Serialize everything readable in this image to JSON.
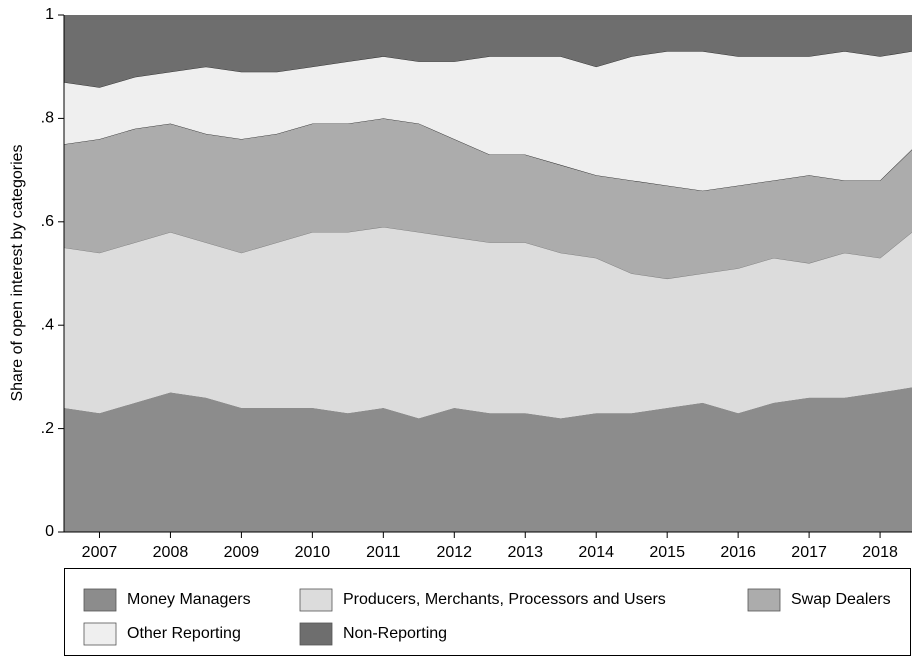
{
  "chart_data": {
    "type": "stacked_area",
    "y_label": "Share of open interest by categories",
    "x": [
      2006.5,
      2007,
      2007.5,
      2008,
      2008.5,
      2009,
      2009.5,
      2010,
      2010.5,
      2011,
      2011.5,
      2012,
      2012.5,
      2013,
      2013.5,
      2014,
      2014.5,
      2015,
      2015.5,
      2016,
      2016.5,
      2017,
      2017.5,
      2018,
      2018.45
    ],
    "xlim": [
      2006.5,
      2018.45
    ],
    "xticks": [
      2007,
      2008,
      2009,
      2010,
      2011,
      2012,
      2013,
      2014,
      2015,
      2016,
      2017,
      2018
    ],
    "ylim": [
      0,
      1
    ],
    "yticks": [
      0,
      {
        "value": 0.2,
        "label": ".2"
      },
      {
        "value": 0.4,
        "label": ".4"
      },
      {
        "value": 0.6,
        "label": ".6"
      },
      {
        "value": 0.8,
        "label": ".8"
      },
      1
    ],
    "series": [
      {
        "name": "Money Managers",
        "color": "#8c8c8c",
        "values": [
          0.24,
          0.23,
          0.25,
          0.27,
          0.26,
          0.24,
          0.24,
          0.24,
          0.23,
          0.24,
          0.22,
          0.24,
          0.23,
          0.23,
          0.22,
          0.23,
          0.23,
          0.24,
          0.25,
          0.23,
          0.25,
          0.26,
          0.26,
          0.27,
          0.28
        ]
      },
      {
        "name": "Producers, Merchants, Processors and Users",
        "color": "#dcdcdc",
        "values": [
          0.31,
          0.31,
          0.31,
          0.31,
          0.3,
          0.3,
          0.32,
          0.34,
          0.35,
          0.35,
          0.36,
          0.33,
          0.33,
          0.33,
          0.32,
          0.3,
          0.27,
          0.25,
          0.25,
          0.28,
          0.28,
          0.26,
          0.28,
          0.26,
          0.3
        ]
      },
      {
        "name": "Swap Dealers",
        "color": "#acacac",
        "values": [
          0.2,
          0.22,
          0.22,
          0.21,
          0.21,
          0.22,
          0.21,
          0.21,
          0.21,
          0.21,
          0.21,
          0.19,
          0.17,
          0.17,
          0.17,
          0.16,
          0.18,
          0.18,
          0.16,
          0.16,
          0.15,
          0.17,
          0.14,
          0.15,
          0.16
        ]
      },
      {
        "name": "Other Reporting",
        "color": "#efefef",
        "values": [
          0.12,
          0.1,
          0.1,
          0.1,
          0.13,
          0.13,
          0.12,
          0.11,
          0.12,
          0.12,
          0.12,
          0.15,
          0.19,
          0.19,
          0.21,
          0.21,
          0.24,
          0.26,
          0.27,
          0.25,
          0.24,
          0.23,
          0.25,
          0.24,
          0.19
        ]
      },
      {
        "name": "Non-Reporting",
        "color": "#6e6e6e",
        "values": [
          0.13,
          0.14,
          0.12,
          0.11,
          0.1,
          0.11,
          0.11,
          0.1,
          0.09,
          0.08,
          0.09,
          0.09,
          0.08,
          0.08,
          0.08,
          0.1,
          0.08,
          0.07,
          0.07,
          0.08,
          0.08,
          0.08,
          0.07,
          0.08,
          0.07
        ]
      }
    ]
  }
}
